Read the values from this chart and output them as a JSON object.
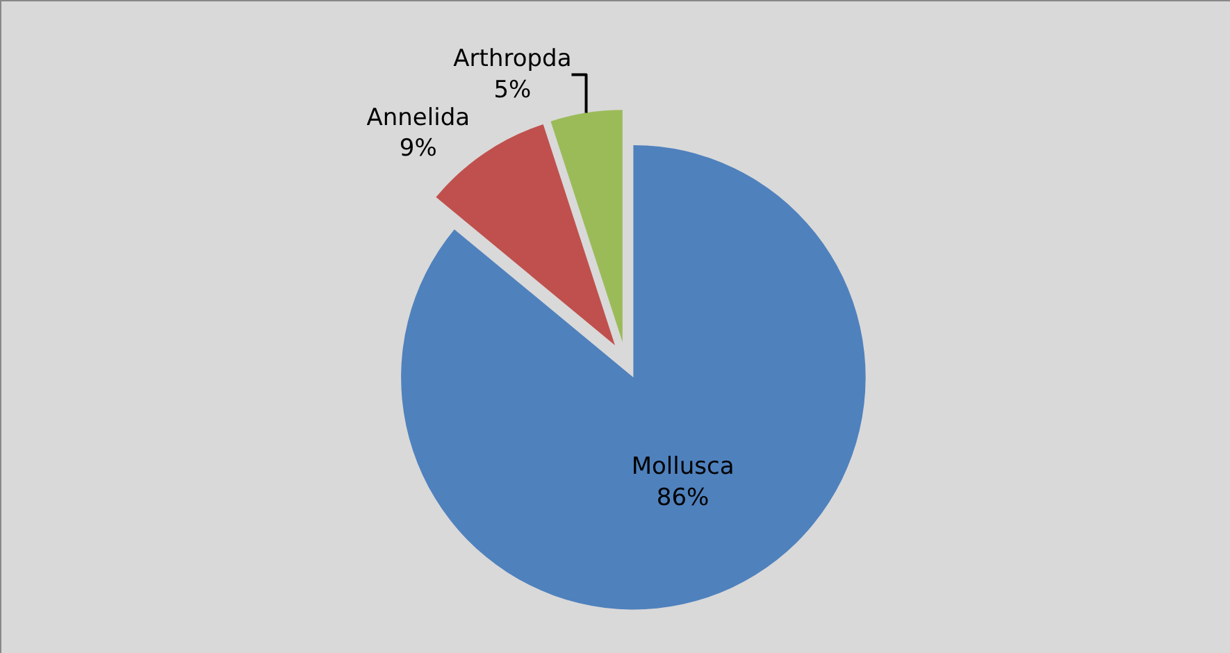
{
  "chart_data": {
    "type": "pie",
    "categories": [
      "Mollusca",
      "Annelida",
      "Arthropda"
    ],
    "values": [
      86,
      9,
      5
    ],
    "value_labels": [
      "86%",
      "9%",
      "5%"
    ],
    "colors": [
      "#4f81bd",
      "#c0504d",
      "#9bbb59"
    ]
  }
}
